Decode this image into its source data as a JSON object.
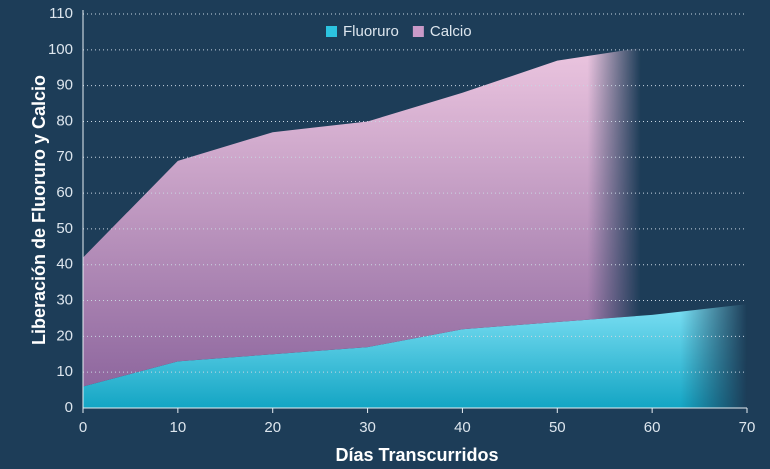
{
  "chart_data": {
    "type": "stacked_area",
    "x": [
      0,
      10,
      20,
      30,
      40,
      50,
      60,
      70
    ],
    "series": [
      {
        "name": "Fluoruro",
        "color": "#2cc3e0",
        "values": [
          6,
          13,
          15,
          17,
          22,
          24,
          26,
          29
        ]
      },
      {
        "name": "Calcio",
        "color": "#c99ac8",
        "values": [
          36,
          56,
          62,
          63,
          66,
          73,
          75,
          null
        ]
      }
    ],
    "xlabel": "Días Transcurridos",
    "ylabel": "Liberación de Fluoruro y Calcio",
    "xlim": [
      0,
      70
    ],
    "xticks": [
      0,
      10,
      20,
      30,
      40,
      50,
      60,
      70
    ],
    "ylim": [
      0,
      110
    ],
    "yticks": [
      0,
      10,
      20,
      30,
      40,
      50,
      60,
      70,
      80,
      90,
      100,
      110
    ],
    "grid": true,
    "legend": "top"
  }
}
